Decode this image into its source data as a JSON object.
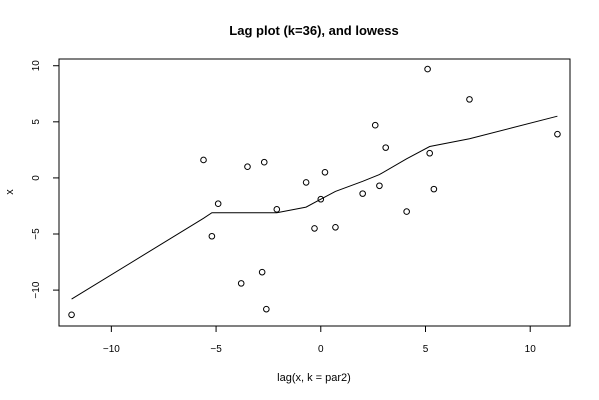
{
  "chart_data": {
    "type": "scatter",
    "title": "Lag plot (k=36), and lowess",
    "xlabel": "lag(x, k = par2)",
    "ylabel": "x",
    "xlim": [
      -12.5,
      11.9
    ],
    "ylim": [
      -13.2,
      10.6
    ],
    "xticks": [
      -10,
      -5,
      0,
      5,
      10
    ],
    "yticks": [
      -10,
      -5,
      0,
      5,
      10
    ],
    "grid": false,
    "points": [
      {
        "x": -11.9,
        "y": -12.2
      },
      {
        "x": -5.6,
        "y": 1.6
      },
      {
        "x": -4.9,
        "y": -2.3
      },
      {
        "x": -5.2,
        "y": -5.2
      },
      {
        "x": -3.5,
        "y": 1.0
      },
      {
        "x": -2.7,
        "y": 1.4
      },
      {
        "x": -2.1,
        "y": -2.8
      },
      {
        "x": -3.8,
        "y": -9.4
      },
      {
        "x": -2.8,
        "y": -8.4
      },
      {
        "x": -2.6,
        "y": -11.7
      },
      {
        "x": -0.7,
        "y": -0.4
      },
      {
        "x": 0.2,
        "y": 0.5
      },
      {
        "x": 0.0,
        "y": -1.9
      },
      {
        "x": -0.3,
        "y": -4.5
      },
      {
        "x": 0.7,
        "y": -4.4
      },
      {
        "x": 2.0,
        "y": -1.4
      },
      {
        "x": 2.8,
        "y": -0.7
      },
      {
        "x": 2.6,
        "y": 4.7
      },
      {
        "x": 3.1,
        "y": 2.7
      },
      {
        "x": 4.1,
        "y": -3.0
      },
      {
        "x": 5.1,
        "y": 9.7
      },
      {
        "x": 5.2,
        "y": 2.2
      },
      {
        "x": 5.4,
        "y": -1.0
      },
      {
        "x": 7.1,
        "y": 7.0
      },
      {
        "x": 11.3,
        "y": 3.9
      }
    ],
    "lowess": [
      {
        "x": -11.9,
        "y": -10.8
      },
      {
        "x": -5.6,
        "y": -3.6
      },
      {
        "x": -5.2,
        "y": -3.1
      },
      {
        "x": -3.5,
        "y": -3.1
      },
      {
        "x": -2.1,
        "y": -3.1
      },
      {
        "x": -0.7,
        "y": -2.6
      },
      {
        "x": 0.0,
        "y": -1.9
      },
      {
        "x": 0.7,
        "y": -1.2
      },
      {
        "x": 2.0,
        "y": -0.3
      },
      {
        "x": 2.8,
        "y": 0.3
      },
      {
        "x": 4.1,
        "y": 1.7
      },
      {
        "x": 5.2,
        "y": 2.8
      },
      {
        "x": 7.1,
        "y": 3.5
      },
      {
        "x": 11.3,
        "y": 5.5
      }
    ]
  }
}
